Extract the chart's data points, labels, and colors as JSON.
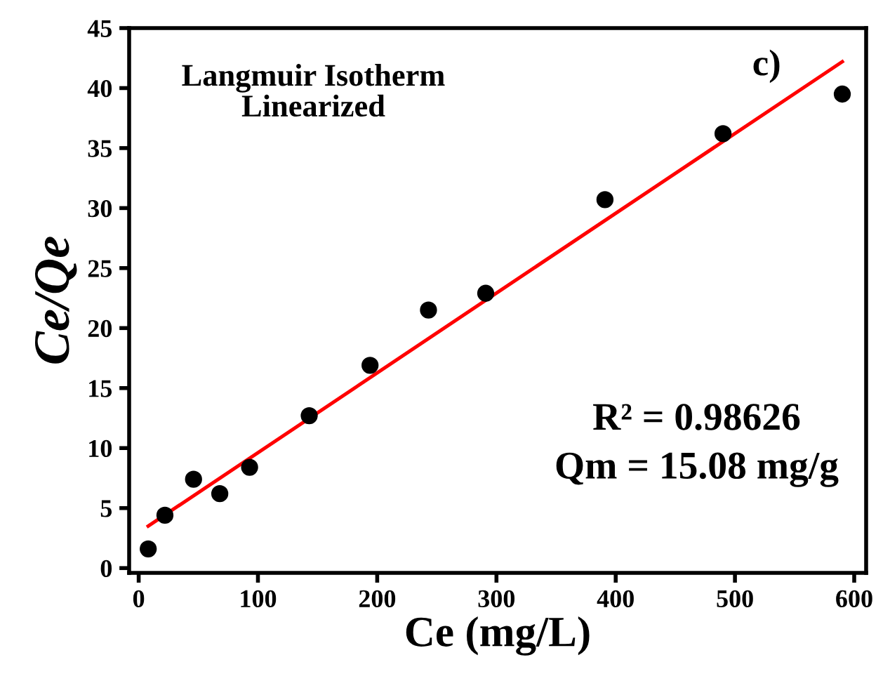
{
  "chart_data": {
    "type": "scatter",
    "xlabel": "Ce (mg/L)",
    "ylabel": "Ce/Qe",
    "annotations": [
      "Langmuir Isotherm\nLinearized",
      "c)",
      "R² = 0.98626",
      "Qm = 15.08 mg/g"
    ],
    "series": [
      {
        "type": "scatter",
        "color": "#000000",
        "x": [
          8,
          22,
          46,
          68,
          93,
          143,
          194,
          243,
          291,
          391,
          490,
          590
        ],
        "values": [
          1.6,
          4.4,
          7.4,
          6.2,
          8.4,
          12.7,
          16.9,
          21.5,
          22.9,
          30.7,
          36.2,
          39.5
        ]
      },
      {
        "type": "line",
        "marker": "none",
        "color": "#ff0000",
        "x": [
          8,
          590
        ],
        "values": [
          3.5,
          42.2
        ]
      }
    ],
    "xlim": [
      -8,
      610
    ],
    "ylim": [
      -0.4,
      45
    ],
    "xticks": [
      0,
      100,
      200,
      300,
      400,
      500,
      600
    ],
    "yticks": [
      0,
      5,
      10,
      15,
      20,
      25,
      30,
      35,
      40,
      45
    ],
    "grid": false,
    "legend": false,
    "marker": "circle"
  }
}
